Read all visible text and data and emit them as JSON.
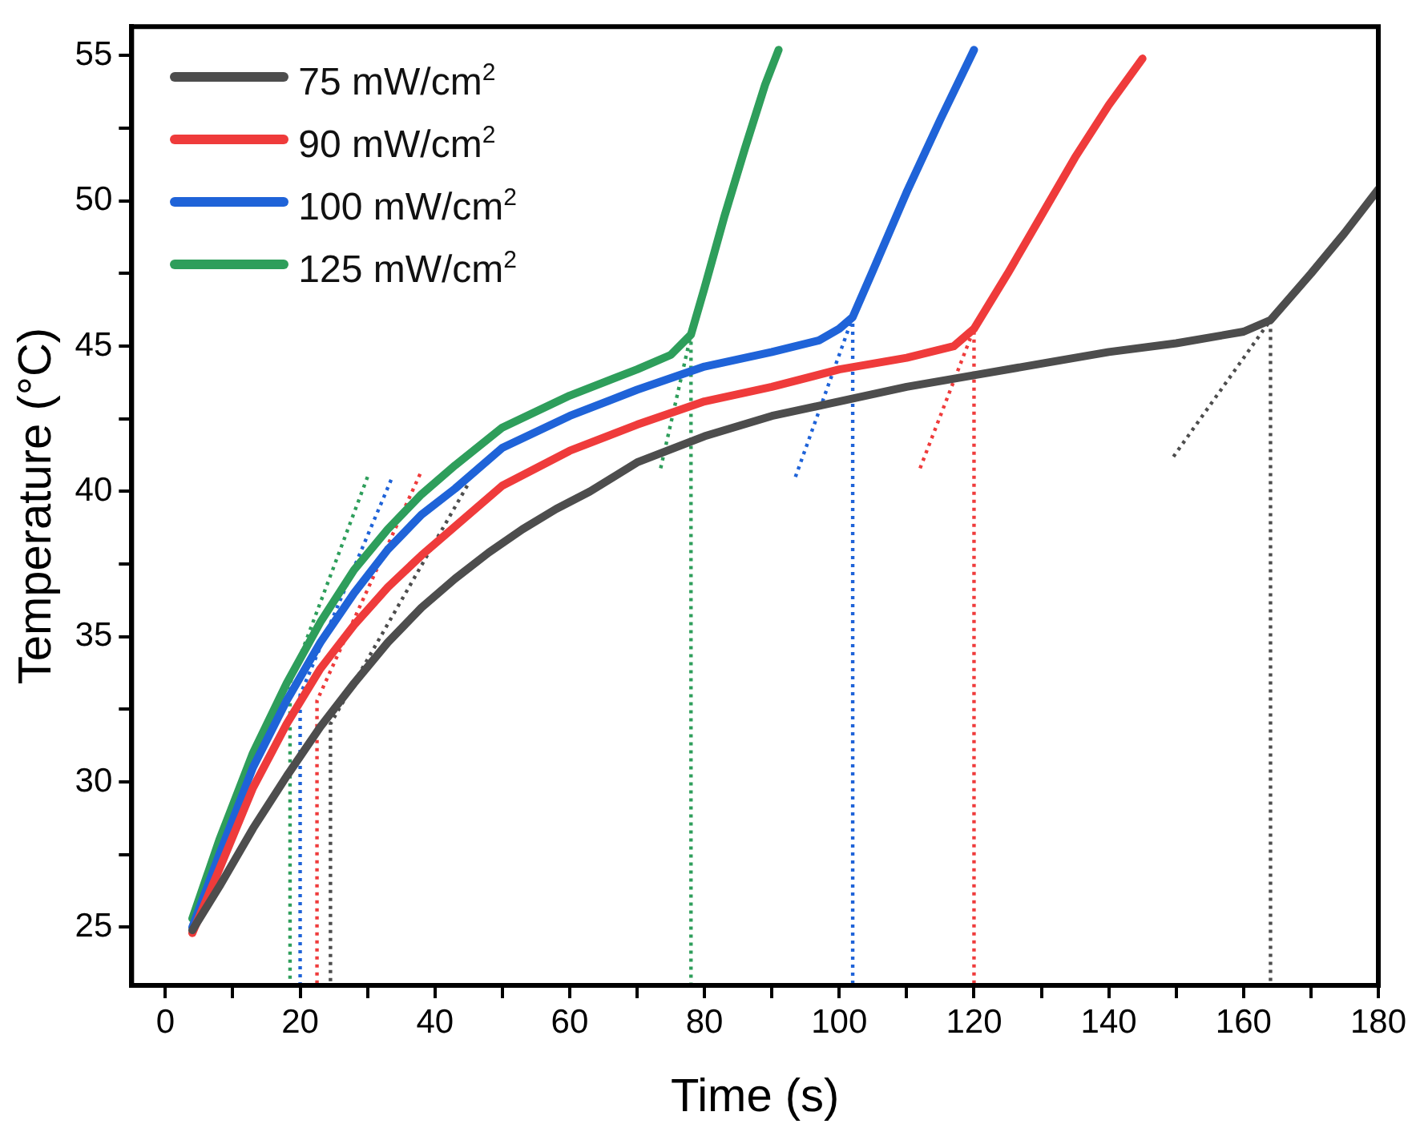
{
  "chart_data": {
    "type": "line",
    "xlabel": "Time (s)",
    "ylabel": "Temperature (°C)",
    "xlim": [
      -5,
      180
    ],
    "xticks": [
      0,
      {
        "value": 10,
        "label": null
      },
      20,
      {
        "value": 30,
        "label": null
      },
      40,
      {
        "value": 50,
        "label": null
      },
      60,
      {
        "value": 70,
        "label": null
      },
      80,
      {
        "value": 90,
        "label": null
      },
      100,
      {
        "value": 110,
        "label": null
      },
      120,
      {
        "value": 130,
        "label": null
      },
      140,
      {
        "value": 150,
        "label": null
      },
      160,
      {
        "value": 170,
        "label": null
      },
      180
    ],
    "ylim": [
      23,
      56
    ],
    "yticks": [
      25,
      {
        "value": 27.5,
        "label": null
      },
      30,
      {
        "value": 32.5,
        "label": null
      },
      35,
      {
        "value": 37.5,
        "label": null
      },
      40,
      {
        "value": 42.5,
        "label": null
      },
      45,
      {
        "value": 47.5,
        "label": null
      },
      50,
      {
        "value": 52.5,
        "label": null
      },
      55
    ],
    "grid": false,
    "legend": "top left",
    "marker": "none",
    "series": [
      {
        "name": "75 mW/cm$^{2}$",
        "color": "#4d4d4d",
        "x": [
          4,
          8,
          13,
          18,
          23,
          28,
          33,
          38,
          43,
          48,
          53,
          58,
          63,
          70,
          80,
          90,
          100,
          110,
          120,
          130,
          140,
          150,
          160,
          164,
          170,
          175,
          180
        ],
        "values": [
          24.9,
          26.4,
          28.4,
          30.2,
          31.9,
          33.4,
          34.8,
          36.0,
          37.0,
          37.9,
          38.7,
          39.4,
          40.0,
          41.0,
          41.9,
          42.6,
          43.1,
          43.6,
          44.0,
          44.4,
          44.8,
          45.1,
          45.5,
          45.9,
          47.5,
          48.9,
          50.4
        ]
      },
      {
        "name": "90 mW/cm$^{2}$",
        "color": "#ef3b3b",
        "x": [
          4,
          8,
          13,
          18,
          23,
          28,
          33,
          38,
          43,
          50,
          60,
          70,
          80,
          90,
          100,
          110,
          117,
          120,
          125,
          130,
          135,
          140,
          145
        ],
        "values": [
          24.8,
          27.0,
          29.8,
          32.0,
          33.9,
          35.4,
          36.7,
          37.8,
          38.8,
          40.2,
          41.4,
          42.3,
          43.1,
          43.6,
          44.2,
          44.6,
          45.0,
          45.6,
          47.5,
          49.5,
          51.5,
          53.3,
          54.9
        ]
      },
      {
        "name": "100 mW/cm$^{2}$",
        "color": "#1f63d8",
        "x": [
          4,
          8,
          13,
          18,
          23,
          28,
          33,
          38,
          43,
          50,
          60,
          70,
          80,
          90,
          97,
          100,
          102,
          105,
          110,
          115,
          120
        ],
        "values": [
          25.0,
          27.5,
          30.5,
          32.8,
          34.8,
          36.5,
          38.0,
          39.2,
          40.1,
          41.5,
          42.6,
          43.5,
          44.3,
          44.8,
          45.2,
          45.6,
          46.0,
          47.6,
          50.3,
          52.8,
          55.2
        ]
      },
      {
        "name": "125 mW/cm$^{2}$",
        "color": "#2e9e5b",
        "x": [
          4,
          8,
          13,
          18,
          23,
          28,
          33,
          38,
          43,
          50,
          60,
          70,
          75,
          78,
          80,
          83,
          86,
          89,
          91
        ],
        "values": [
          25.3,
          28.0,
          31.0,
          33.4,
          35.5,
          37.3,
          38.7,
          39.9,
          40.9,
          42.2,
          43.3,
          44.2,
          44.7,
          45.4,
          47.0,
          49.5,
          51.8,
          54.0,
          55.2
        ]
      },
      {
        "type": "line",
        "line_style": "dotted",
        "color": "#4d4d4d",
        "x": [
          44.8,
          24.5,
          24.5
        ],
        "values": [
          40.2,
          32.0,
          23
        ]
      },
      {
        "type": "line",
        "line_style": "dotted",
        "color": "#ef3b3b",
        "x": [
          37.8,
          22.5,
          22.5
        ],
        "values": [
          40.6,
          32.8,
          23
        ]
      },
      {
        "type": "line",
        "line_style": "dotted",
        "color": "#1f63d8",
        "x": [
          33.5,
          20,
          20
        ],
        "values": [
          40.4,
          33.0,
          23
        ]
      },
      {
        "type": "line",
        "line_style": "dotted",
        "color": "#2e9e5b",
        "x": [
          30,
          18.5,
          18.5
        ],
        "values": [
          40.5,
          33.4,
          23
        ]
      },
      {
        "type": "line",
        "line_style": "dotted",
        "color": "#4d4d4d",
        "x": [
          149.6,
          164,
          164
        ],
        "values": [
          41.2,
          45.9,
          23
        ]
      },
      {
        "type": "line",
        "line_style": "dotted",
        "color": "#ef3b3b",
        "x": [
          112,
          120,
          120
        ],
        "values": [
          40.8,
          45.6,
          23
        ]
      },
      {
        "type": "line",
        "line_style": "dotted",
        "color": "#1f63d8",
        "x": [
          93.5,
          102,
          102
        ],
        "values": [
          40.5,
          46.0,
          23
        ]
      },
      {
        "type": "line",
        "line_style": "dotted",
        "color": "#2e9e5b",
        "x": [
          73.5,
          78,
          78
        ],
        "values": [
          40.8,
          45.4,
          23
        ]
      }
    ]
  }
}
